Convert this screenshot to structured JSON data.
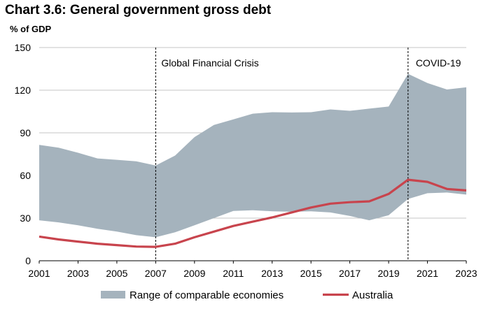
{
  "title": "Chart 3.6: General government gross debt",
  "unit_label": "% of GDP",
  "chart_data": {
    "type": "area",
    "title": "Chart 3.6: General government gross debt",
    "ylabel": "% of GDP",
    "xlabel": "",
    "xlim": [
      2001,
      2023
    ],
    "ylim": [
      0,
      150
    ],
    "x_ticks": [
      2001,
      2003,
      2005,
      2007,
      2009,
      2011,
      2013,
      2015,
      2017,
      2019,
      2021,
      2023
    ],
    "x_tick_labels": [
      "2001",
      "2003",
      "2005",
      "2007",
      "2009",
      "2011",
      "2013",
      "2015",
      "2017",
      "2019",
      "2021",
      "2023"
    ],
    "y_ticks": [
      0,
      30,
      60,
      90,
      120,
      150
    ],
    "y_tick_labels": [
      "0",
      "30",
      "60",
      "90",
      "120",
      "150"
    ],
    "grid": "horizontal",
    "x": [
      2001,
      2002,
      2003,
      2004,
      2005,
      2006,
      2007,
      2008,
      2009,
      2010,
      2011,
      2012,
      2013,
      2014,
      2015,
      2016,
      2017,
      2018,
      2019,
      2020,
      2021,
      2022,
      2023
    ],
    "range": {
      "name": "Range of comparable economies",
      "color": "#a5b3bd",
      "upper": [
        81.5,
        79.5,
        76,
        72,
        71,
        70,
        67,
        74,
        87,
        95.5,
        99.5,
        103.5,
        104.5,
        104.3,
        104.5,
        106.5,
        105.5,
        107,
        108.5,
        131.5,
        125,
        120.5,
        122
      ],
      "lower": [
        28.5,
        27,
        25,
        22.5,
        20.5,
        18,
        16.5,
        20,
        25,
        30,
        35,
        35.5,
        34.8,
        34.5,
        34.8,
        34,
        31.5,
        28.5,
        32,
        43.5,
        47.5,
        48,
        46.5
      ]
    },
    "series": [
      {
        "name": "Australia",
        "color": "#c8444d",
        "values": [
          17,
          15,
          13.5,
          12,
          11,
          10,
          9.8,
          12,
          16.5,
          20.5,
          24.5,
          27.5,
          30.5,
          34,
          37.5,
          40.2,
          41.2,
          41.8,
          47,
          57,
          55.5,
          50.5,
          49.5
        ]
      }
    ],
    "annotations": [
      {
        "x": 2007,
        "label": "Global Financial Crisis",
        "style": "dashed vertical line"
      },
      {
        "x": 2020,
        "label": "COVID-19",
        "style": "dashed vertical line"
      }
    ],
    "legend": {
      "placement": "bottom",
      "items": [
        {
          "label": "Range of comparable economies",
          "kind": "area"
        },
        {
          "label": "Australia",
          "kind": "line"
        }
      ]
    }
  }
}
